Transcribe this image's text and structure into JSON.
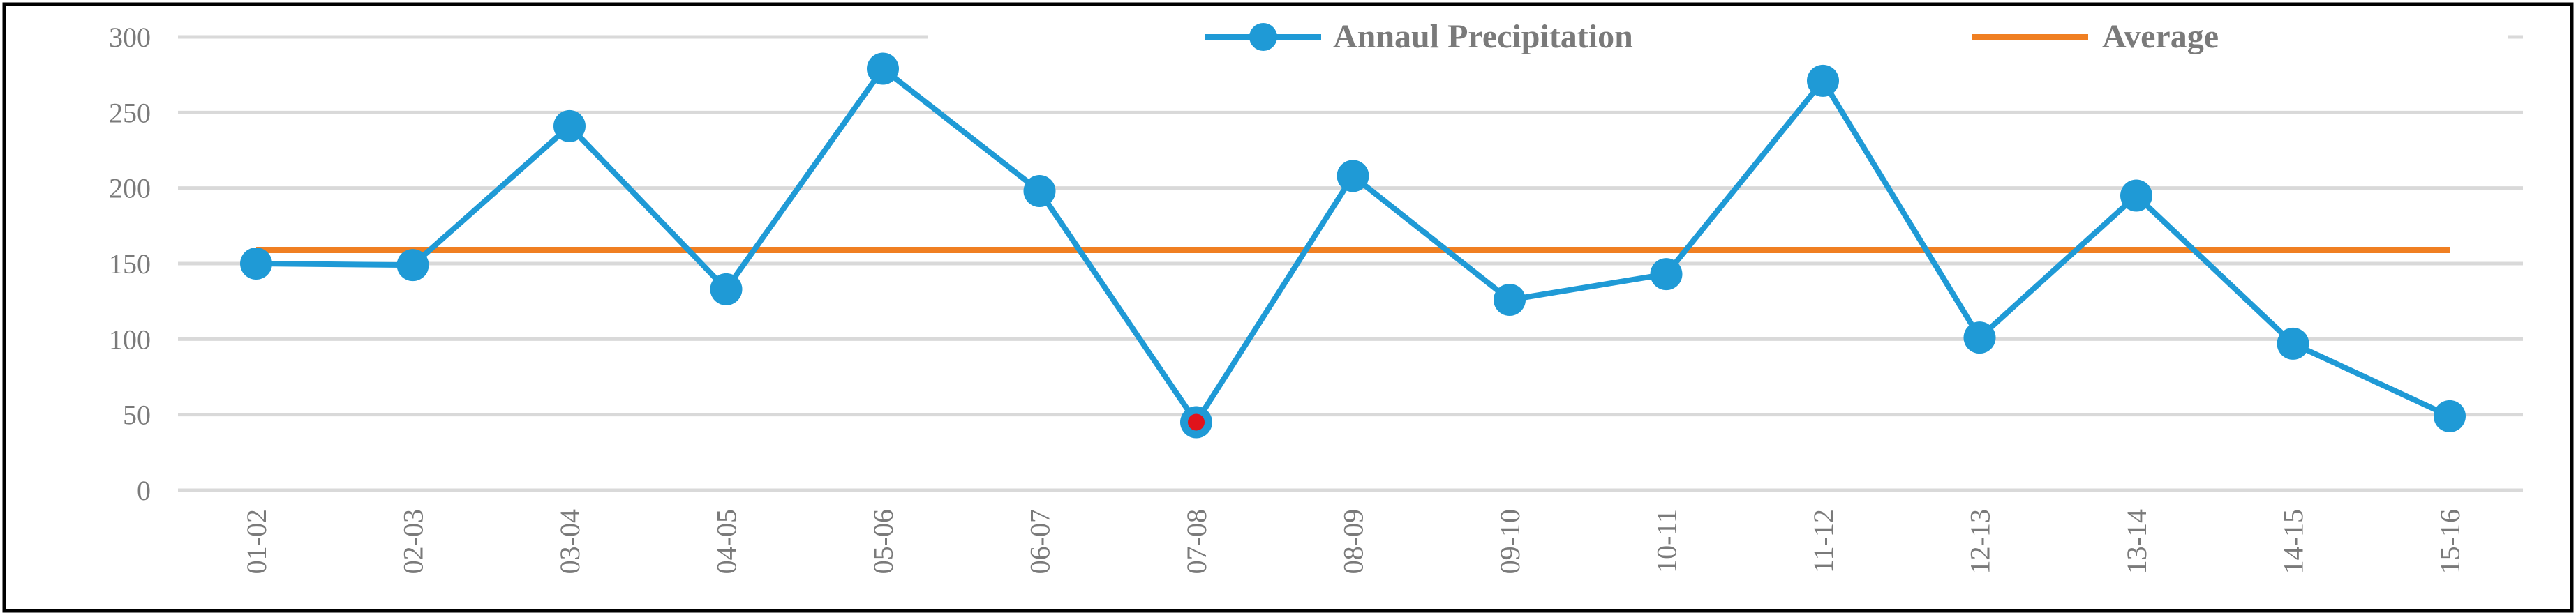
{
  "chart_data": {
    "type": "line",
    "title": "",
    "xlabel": "",
    "ylabel": "",
    "ylim": [
      0,
      300
    ],
    "yticks": [
      "0",
      "50",
      "100",
      "150",
      "200",
      "250",
      "300"
    ],
    "categories": [
      "01-02",
      "02-03",
      "03-04",
      "04-05",
      "05-06",
      "06-07",
      "07-08",
      "08-09",
      "09-10",
      "10-11",
      "11-12",
      "12-13",
      "13-14",
      "14-15",
      "15-16"
    ],
    "series": [
      {
        "name": "Annaul Precipitation",
        "color": "#1f9ad6",
        "values": [
          150,
          149,
          241,
          133,
          279,
          198,
          45,
          208,
          126,
          143,
          271,
          101,
          195,
          97,
          49
        ],
        "highlight_index": 6,
        "highlight_color": "#e0131b"
      },
      {
        "name": "Average",
        "color": "#f07f22",
        "values": [
          159,
          159,
          159,
          159,
          159,
          159,
          159,
          159,
          159,
          159,
          159,
          159,
          159,
          159,
          159
        ]
      }
    ],
    "legend_position": "top",
    "grid": true
  },
  "legend": {
    "series1_label": "Annaul Precipitation",
    "series2_label": "Average"
  }
}
